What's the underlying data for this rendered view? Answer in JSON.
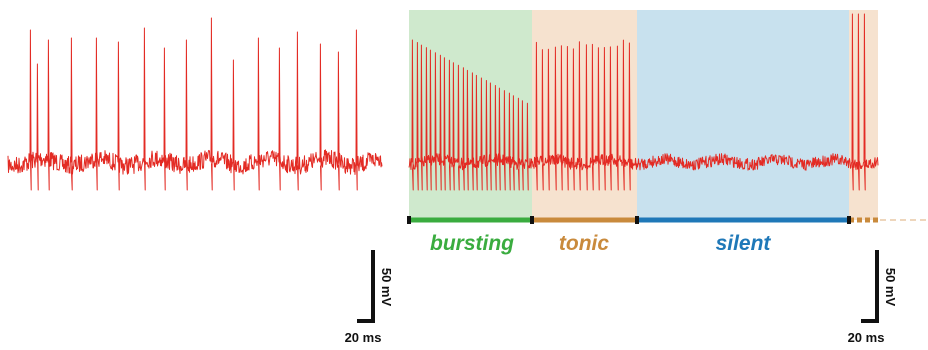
{
  "colors": {
    "trace": "#e32b24",
    "bursting_bg": "#cfe9cd",
    "tonic_bg": "#f6e2cf",
    "silent_bg": "#c8e1ee",
    "bursting": "#3aac3f",
    "tonic": "#c98a3c",
    "silent": "#1f78b8",
    "scale_bar": "#111111"
  },
  "regions": [
    {
      "id": "bursting",
      "label": "bursting"
    },
    {
      "id": "tonic",
      "label": "tonic"
    },
    {
      "id": "silent",
      "label": "silent"
    }
  ],
  "scale_bars": [
    {
      "id": "left",
      "voltage_label": "50 mV",
      "time_label": "20 ms"
    },
    {
      "id": "right",
      "voltage_label": "50 mV",
      "time_label": "20 ms"
    }
  ]
}
